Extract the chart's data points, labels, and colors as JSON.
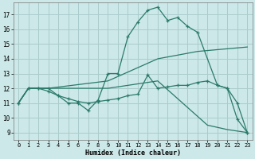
{
  "xlabel": "Humidex (Indice chaleur)",
  "bg_color": "#cce8e8",
  "grid_color": "#aacccc",
  "line_color": "#2a7a6a",
  "xlim": [
    -0.5,
    23.5
  ],
  "ylim": [
    8.5,
    17.8
  ],
  "yticks": [
    9,
    10,
    11,
    12,
    13,
    14,
    15,
    16,
    17
  ],
  "xticks": [
    0,
    1,
    2,
    3,
    4,
    5,
    6,
    7,
    8,
    9,
    10,
    11,
    12,
    13,
    14,
    15,
    16,
    17,
    18,
    19,
    20,
    21,
    22,
    23
  ],
  "line1_x": [
    0,
    1,
    2,
    3,
    4,
    5,
    6,
    7,
    8,
    9,
    10,
    11,
    12,
    13,
    14,
    15,
    16,
    17,
    18,
    20,
    21,
    22,
    23
  ],
  "line1_y": [
    11,
    12,
    12,
    12,
    11.5,
    11,
    11,
    10.5,
    11.2,
    13,
    13,
    15.5,
    16.5,
    17.3,
    17.5,
    16.6,
    16.8,
    16.2,
    15.8,
    12.2,
    12,
    11,
    9
  ],
  "line2_x": [
    0,
    1,
    2,
    3,
    4,
    5,
    6,
    7,
    8,
    9,
    10,
    11,
    12,
    13,
    14,
    15,
    16,
    17,
    18,
    19,
    20,
    21,
    22,
    23
  ],
  "line2_y": [
    11,
    12,
    12,
    11.8,
    11.5,
    11.3,
    11.1,
    11.0,
    11.1,
    11.2,
    11.3,
    11.5,
    11.6,
    12.9,
    12.0,
    12.1,
    12.2,
    12.2,
    12.4,
    12.5,
    12.2,
    12,
    9.9,
    9
  ],
  "line3_x": [
    0,
    1,
    3,
    9,
    14,
    18,
    23
  ],
  "line3_y": [
    11,
    12,
    12,
    12.5,
    14.0,
    14.5,
    14.8
  ],
  "line4_x": [
    0,
    1,
    3,
    9,
    14,
    19,
    21,
    23
  ],
  "line4_y": [
    11,
    12,
    12,
    12.0,
    12.5,
    9.5,
    9.2,
    9.0
  ]
}
